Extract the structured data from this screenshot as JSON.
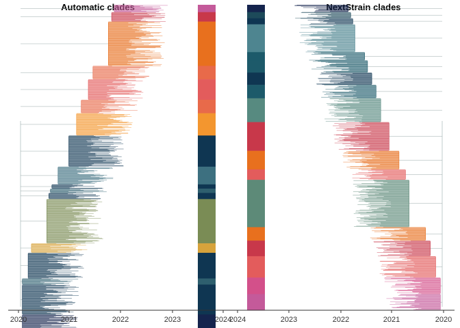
{
  "chart_data": [
    {
      "type": "phylogenetic-tree-with-clade-bar",
      "title": "Automatic clades",
      "orientation": "left-to-right",
      "x_axis": {
        "ticks": [
          "2020",
          "2021",
          "2022",
          "2023",
          "2024"
        ],
        "range": [
          2019.9,
          2024.0
        ]
      },
      "clade_bar": [
        "#c45a9a",
        "#c8384a",
        "#e8701e",
        "#e86a4a",
        "#e35c5c",
        "#e86a4a",
        "#f3962f",
        "#0f3652",
        "#3d7080",
        "#0f3652",
        "#2e5f6e",
        "#0f3652",
        "#7a8c55",
        "#d7a33c",
        "#0f3652",
        "#2e5f6e",
        "#0f3652",
        "#15244d"
      ],
      "clade_bar_fractions": [
        0.024,
        0.031,
        0.145,
        0.044,
        0.067,
        0.044,
        0.073,
        0.102,
        0.058,
        0.014,
        0.014,
        0.02,
        0.145,
        0.031,
        0.084,
        0.02,
        0.098,
        0.048
      ]
    },
    {
      "type": "phylogenetic-tree-with-clade-bar",
      "title": "NextStrain clades",
      "orientation": "right-to-left",
      "x_axis": {
        "ticks": [
          "2024",
          "2023",
          "2022",
          "2021",
          "2020"
        ],
        "range": [
          2024.0,
          2019.9
        ]
      },
      "clade_bar": [
        "#15244d",
        "#1d4a5a",
        "#0f3652",
        "#4e8590",
        "#1d5a6a",
        "#1d5a6a",
        "#0f3652",
        "#1d5a6a",
        "#578a80",
        "#c8384a",
        "#e8701e",
        "#e35c5c",
        "#5d8a78",
        "#e8701e",
        "#c8384a",
        "#e35c5c",
        "#d3508a",
        "#c45a9a"
      ],
      "clade_bar_fractions": [
        0.024,
        0.02,
        0.02,
        0.091,
        0.027,
        0.04,
        0.04,
        0.044,
        0.078,
        0.094,
        0.061,
        0.034,
        0.155,
        0.044,
        0.051,
        0.07,
        0.054,
        0.053
      ]
    }
  ]
}
